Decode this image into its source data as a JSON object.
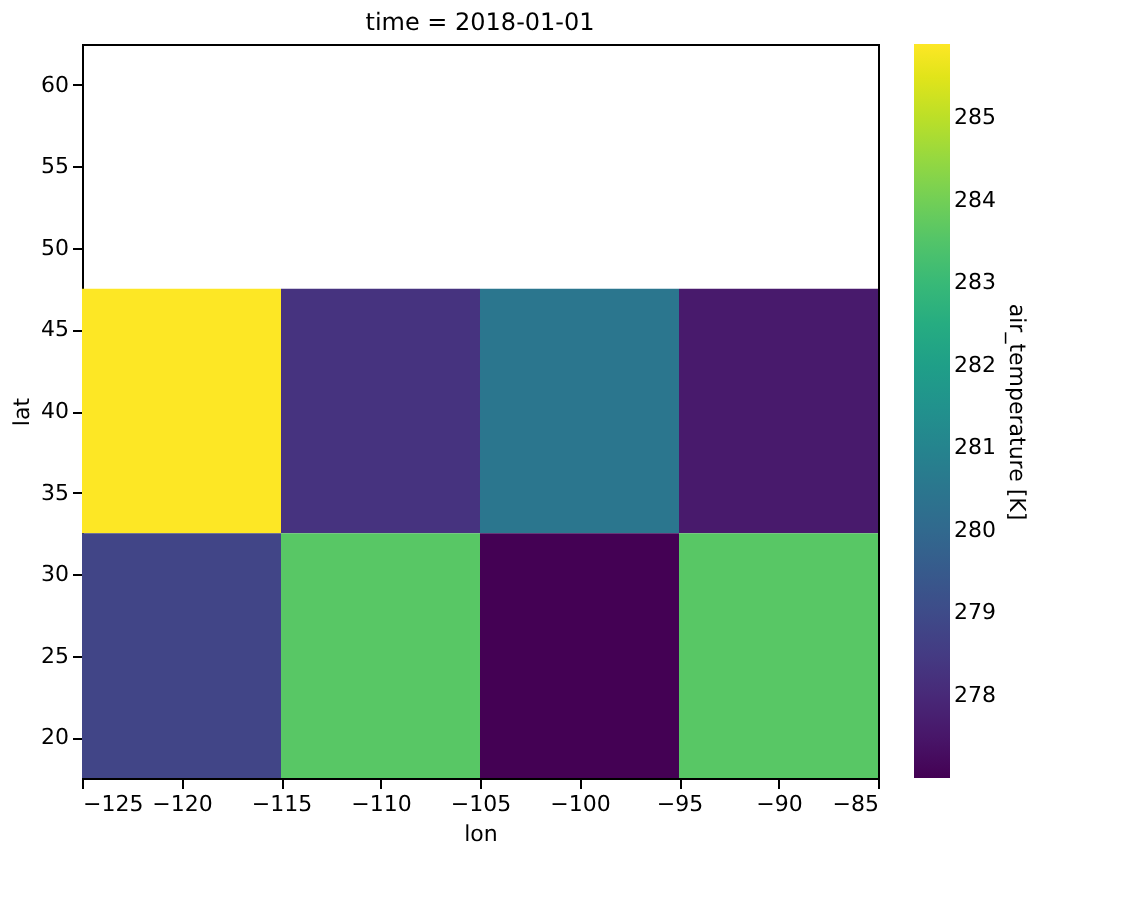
{
  "chart_data": {
    "type": "heatmap",
    "title": "time = 2018-01-01",
    "xlabel": "lon",
    "ylabel": "lat",
    "clabel": "air_temperature [K]",
    "x": [
      -120,
      -110,
      -100,
      -90
    ],
    "y": [
      40,
      25
    ],
    "cells": [
      [
        285.9,
        278.3,
        280.5,
        277.6
      ],
      [
        278.8,
        283.6,
        277.0,
        283.6
      ]
    ],
    "xlim": [
      -125,
      -85
    ],
    "xticks": [
      -125,
      -120,
      -115,
      -110,
      -105,
      -100,
      -95,
      -90,
      -85
    ],
    "ylim": [
      17.5,
      62.5
    ],
    "yticks": [
      20,
      25,
      30,
      35,
      40,
      45,
      50,
      55,
      60
    ],
    "clim": [
      277.0,
      285.9
    ],
    "cticks": [
      278,
      279,
      280,
      281,
      282,
      283,
      284,
      285
    ],
    "grid": false
  }
}
